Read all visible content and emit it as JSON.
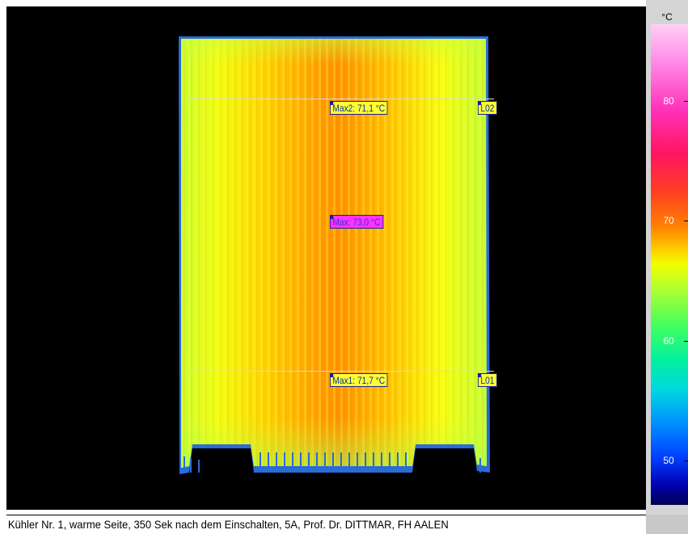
{
  "image": {
    "caption": "Kühler Nr. 1, warme Seite, 350 Sek nach dem Einschalten, 5A, Prof. Dr. DITTMAR, FH AALEN"
  },
  "markers": {
    "max2": "Max2: 71,1 °C",
    "max": "Max: 73,0 °C",
    "max1": "Max1: 71,7 °C",
    "line2": "L02",
    "line1": "L01"
  },
  "colorscale": {
    "unit": "°C",
    "labels": [
      "80",
      "70",
      "60",
      "50"
    ]
  },
  "colors": {
    "tag_yellow": "#ffff33",
    "tag_magenta": "#ff33ff",
    "hot": "#ff6a00",
    "warm": "#ffc800",
    "cool": "#d8ff20"
  }
}
